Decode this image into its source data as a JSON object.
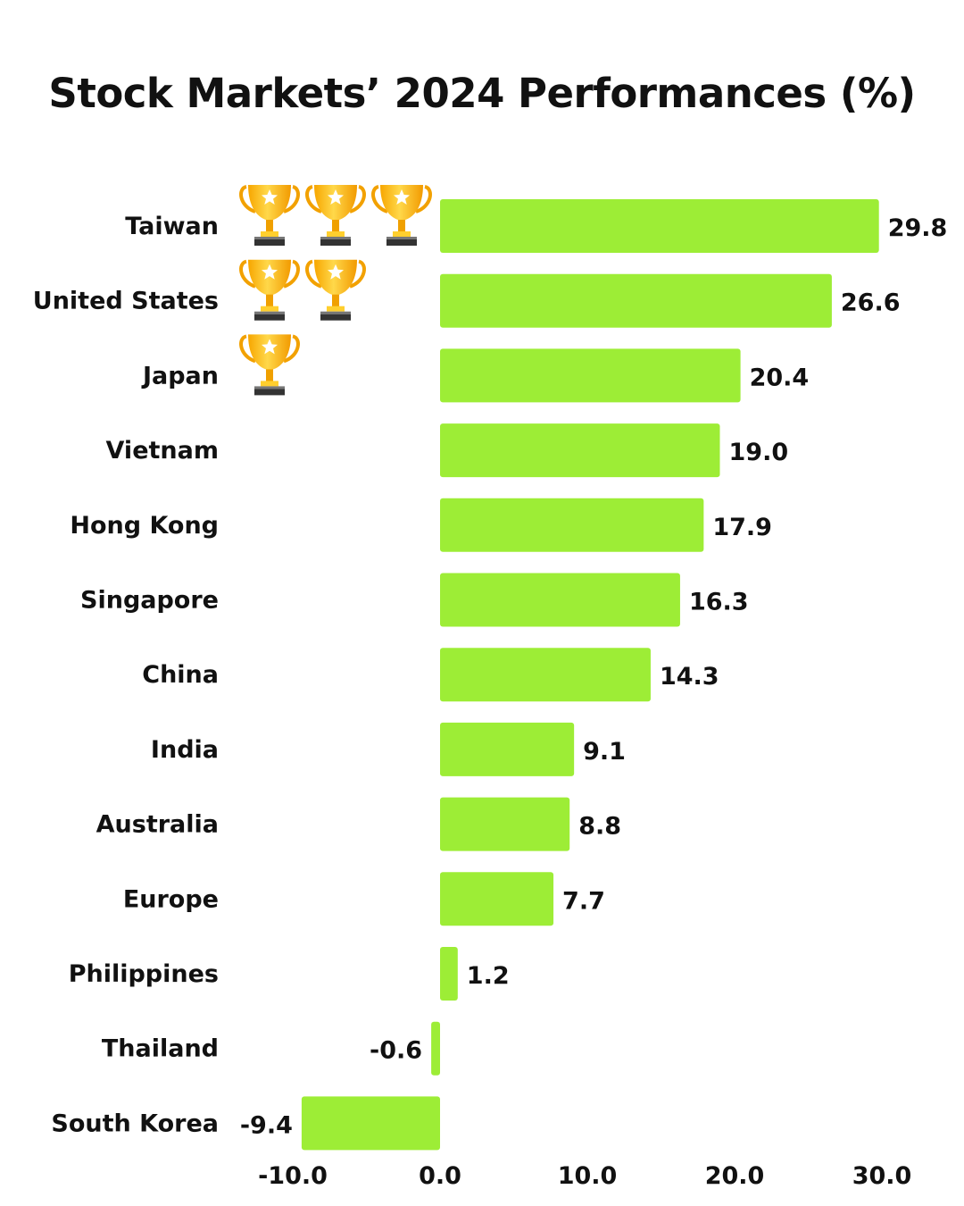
{
  "chart_data": {
    "type": "bar",
    "orientation": "horizontal",
    "title": "Stock Markets’ 2024 Performances (%)",
    "categories": [
      "Taiwan",
      "United States",
      "Japan",
      "Vietnam",
      "Hong Kong",
      "Singapore",
      "China",
      "India",
      "Australia",
      "Europe",
      "Philippines",
      "Thailand",
      "South Korea"
    ],
    "values": [
      29.8,
      26.6,
      20.4,
      19.0,
      17.9,
      16.3,
      14.3,
      9.1,
      8.8,
      7.7,
      1.2,
      -0.6,
      -9.4
    ],
    "value_labels": [
      "29.8",
      "26.6",
      "20.4",
      "19.0",
      "17.9",
      "16.3",
      "14.3",
      "9.1",
      "8.8",
      "7.7",
      "1.2",
      "-0.6",
      "-9.4"
    ],
    "trophies": [
      3,
      2,
      1,
      0,
      0,
      0,
      0,
      0,
      0,
      0,
      0,
      0,
      0
    ],
    "xlim": [
      -10,
      30
    ],
    "xticks": [
      "-10.0",
      "0.0",
      "10.0",
      "20.0",
      "30.0"
    ],
    "xtick_values": [
      -10,
      0,
      10,
      20,
      30
    ],
    "grid": false,
    "legend": "none",
    "bar_color": "#9ded36",
    "trophy_icon": "trophy-icon"
  }
}
